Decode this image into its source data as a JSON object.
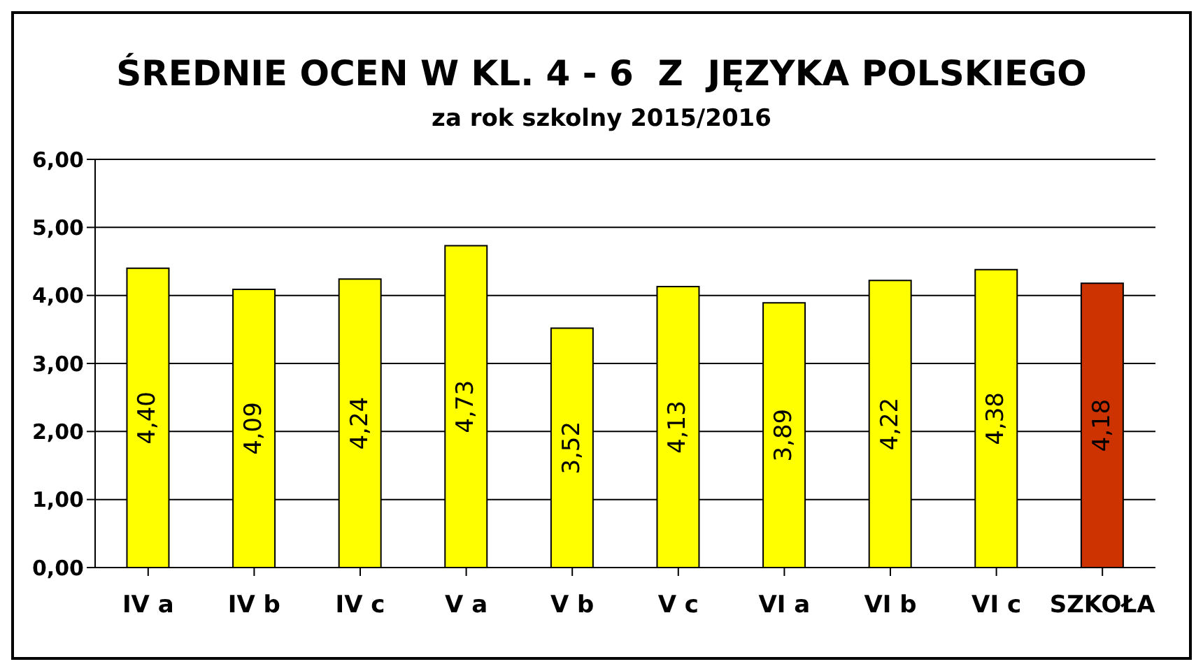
{
  "chart_data": {
    "type": "bar",
    "title": "ŚREDNIE OCEN W KL. 4 - 6  Z  JĘZYKA POLSKIEGO",
    "subtitle": "za rok szkolny 2015/2016",
    "categories": [
      "IV a",
      "IV b",
      "IV c",
      "V a",
      "V b",
      "V c",
      "VI a",
      "VI b",
      "VI c",
      "SZKOŁA"
    ],
    "values": [
      4.4,
      4.09,
      4.24,
      4.73,
      3.52,
      4.13,
      3.89,
      4.22,
      4.38,
      4.18
    ],
    "colors": [
      "#ffff00",
      "#ffff00",
      "#ffff00",
      "#ffff00",
      "#ffff00",
      "#ffff00",
      "#ffff00",
      "#ffff00",
      "#ffff00",
      "#cc3300"
    ],
    "value_labels": [
      "4,40",
      "4,09",
      "4,24",
      "4,73",
      "3,52",
      "4,13",
      "3,89",
      "4,22",
      "4,38",
      "4,18"
    ],
    "ylim": [
      0,
      6
    ],
    "yticks": [
      {
        "value": 0,
        "label": "0,00"
      },
      {
        "value": 1,
        "label": "1,00"
      },
      {
        "value": 2,
        "label": "2,00"
      },
      {
        "value": 3,
        "label": "3,00"
      },
      {
        "value": 4,
        "label": "4,00"
      },
      {
        "value": 5,
        "label": "5,00"
      },
      {
        "value": 6,
        "label": "6,00"
      }
    ],
    "grid": "y",
    "legend": false
  }
}
